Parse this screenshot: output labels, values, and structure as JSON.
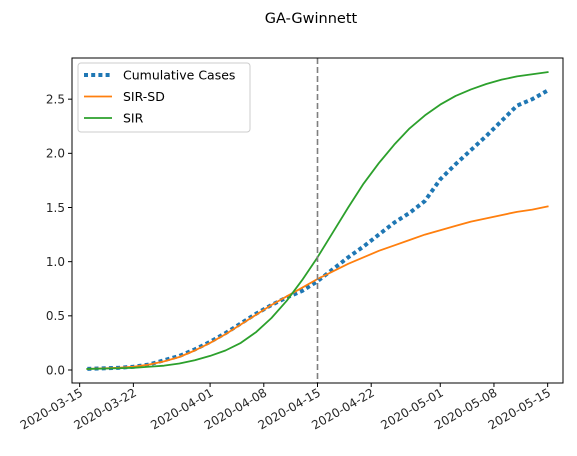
{
  "chart_data": {
    "type": "line",
    "title": "GA-Gwinnett",
    "xlabel": "",
    "ylabel": "",
    "x_axis": "date",
    "xlim": [
      "2020-03-14",
      "2020-05-17"
    ],
    "ylim": [
      -0.12,
      2.88
    ],
    "x_ticks": [
      "2020-03-15",
      "2020-03-22",
      "2020-04-01",
      "2020-04-08",
      "2020-04-15",
      "2020-04-22",
      "2020-05-01",
      "2020-05-08",
      "2020-05-15"
    ],
    "y_ticks": [
      0.0,
      0.5,
      1.0,
      1.5,
      2.0,
      2.5
    ],
    "y_tick_labels": [
      "0.0",
      "0.5",
      "1.0",
      "1.5",
      "2.0",
      "2.5"
    ],
    "grid": false,
    "legend_position": "top-left",
    "vline": {
      "x": "2020-04-15",
      "style": "dashed",
      "color": "#7f7f7f"
    },
    "series": [
      {
        "name": "Cumulative Cases",
        "style": "dotted",
        "color": "#1f77b4",
        "points": [
          [
            "2020-03-16",
            0.01
          ],
          [
            "2020-03-18",
            0.015
          ],
          [
            "2020-03-20",
            0.02
          ],
          [
            "2020-03-22",
            0.03
          ],
          [
            "2020-03-24",
            0.05
          ],
          [
            "2020-03-26",
            0.09
          ],
          [
            "2020-03-28",
            0.13
          ],
          [
            "2020-03-30",
            0.19
          ],
          [
            "2020-04-01",
            0.26
          ],
          [
            "2020-04-03",
            0.34
          ],
          [
            "2020-04-05",
            0.43
          ],
          [
            "2020-04-07",
            0.52
          ],
          [
            "2020-04-09",
            0.6
          ],
          [
            "2020-04-11",
            0.67
          ],
          [
            "2020-04-13",
            0.73
          ],
          [
            "2020-04-15",
            0.82
          ],
          [
            "2020-04-17",
            0.93
          ],
          [
            "2020-04-19",
            1.04
          ],
          [
            "2020-04-21",
            1.14
          ],
          [
            "2020-04-23",
            1.25
          ],
          [
            "2020-04-25",
            1.36
          ],
          [
            "2020-04-27",
            1.45
          ],
          [
            "2020-04-29",
            1.56
          ],
          [
            "2020-05-01",
            1.76
          ],
          [
            "2020-05-03",
            1.9
          ],
          [
            "2020-05-05",
            2.03
          ],
          [
            "2020-05-07",
            2.16
          ],
          [
            "2020-05-09",
            2.3
          ],
          [
            "2020-05-11",
            2.44
          ],
          [
            "2020-05-13",
            2.5
          ],
          [
            "2020-05-15",
            2.58
          ]
        ]
      },
      {
        "name": "SIR-SD",
        "style": "solid",
        "color": "#ff7f0e",
        "points": [
          [
            "2020-03-16",
            0.01
          ],
          [
            "2020-03-18",
            0.015
          ],
          [
            "2020-03-20",
            0.02
          ],
          [
            "2020-03-22",
            0.03
          ],
          [
            "2020-03-24",
            0.05
          ],
          [
            "2020-03-26",
            0.08
          ],
          [
            "2020-03-28",
            0.12
          ],
          [
            "2020-03-30",
            0.18
          ],
          [
            "2020-04-01",
            0.25
          ],
          [
            "2020-04-03",
            0.33
          ],
          [
            "2020-04-05",
            0.42
          ],
          [
            "2020-04-07",
            0.51
          ],
          [
            "2020-04-09",
            0.6
          ],
          [
            "2020-04-11",
            0.68
          ],
          [
            "2020-04-13",
            0.76
          ],
          [
            "2020-04-15",
            0.84
          ],
          [
            "2020-04-17",
            0.91
          ],
          [
            "2020-04-19",
            0.98
          ],
          [
            "2020-04-21",
            1.04
          ],
          [
            "2020-04-23",
            1.1
          ],
          [
            "2020-04-25",
            1.15
          ],
          [
            "2020-04-27",
            1.2
          ],
          [
            "2020-04-29",
            1.25
          ],
          [
            "2020-05-01",
            1.29
          ],
          [
            "2020-05-03",
            1.33
          ],
          [
            "2020-05-05",
            1.37
          ],
          [
            "2020-05-07",
            1.4
          ],
          [
            "2020-05-09",
            1.43
          ],
          [
            "2020-05-11",
            1.46
          ],
          [
            "2020-05-13",
            1.48
          ],
          [
            "2020-05-15",
            1.51
          ]
        ]
      },
      {
        "name": "SIR",
        "style": "solid",
        "color": "#2ca02c",
        "points": [
          [
            "2020-03-16",
            0.01
          ],
          [
            "2020-03-18",
            0.013
          ],
          [
            "2020-03-20",
            0.016
          ],
          [
            "2020-03-22",
            0.02
          ],
          [
            "2020-03-24",
            0.03
          ],
          [
            "2020-03-26",
            0.04
          ],
          [
            "2020-03-28",
            0.06
          ],
          [
            "2020-03-30",
            0.09
          ],
          [
            "2020-04-01",
            0.13
          ],
          [
            "2020-04-03",
            0.18
          ],
          [
            "2020-04-05",
            0.25
          ],
          [
            "2020-04-07",
            0.35
          ],
          [
            "2020-04-09",
            0.48
          ],
          [
            "2020-04-11",
            0.64
          ],
          [
            "2020-04-13",
            0.83
          ],
          [
            "2020-04-15",
            1.04
          ],
          [
            "2020-04-17",
            1.27
          ],
          [
            "2020-04-19",
            1.5
          ],
          [
            "2020-04-21",
            1.72
          ],
          [
            "2020-04-23",
            1.91
          ],
          [
            "2020-04-25",
            2.08
          ],
          [
            "2020-04-27",
            2.23
          ],
          [
            "2020-04-29",
            2.35
          ],
          [
            "2020-05-01",
            2.45
          ],
          [
            "2020-05-03",
            2.53
          ],
          [
            "2020-05-05",
            2.59
          ],
          [
            "2020-05-07",
            2.64
          ],
          [
            "2020-05-09",
            2.68
          ],
          [
            "2020-05-11",
            2.71
          ],
          [
            "2020-05-13",
            2.73
          ],
          [
            "2020-05-15",
            2.75
          ]
        ]
      }
    ]
  }
}
